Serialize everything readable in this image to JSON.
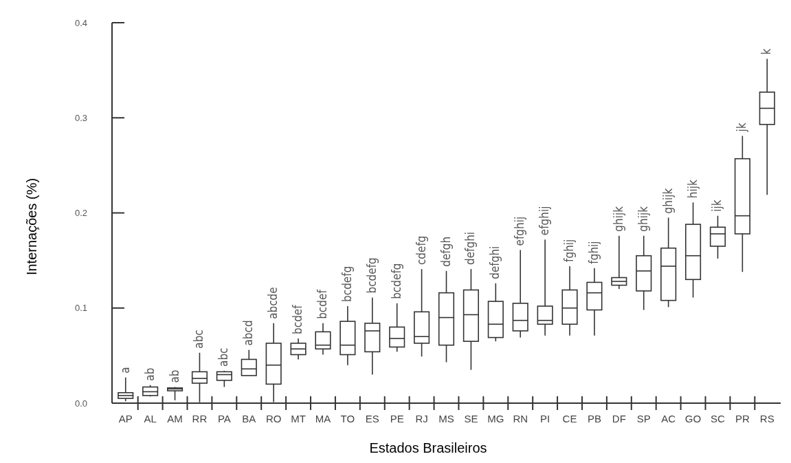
{
  "chart_data": {
    "type": "box",
    "xlabel": "Estados Brasileiros",
    "ylabel": "Internações (%)",
    "categories": [
      "AP",
      "AL",
      "AM",
      "RR",
      "PA",
      "BA",
      "RO",
      "MT",
      "MA",
      "TO",
      "ES",
      "PE",
      "RJ",
      "MS",
      "SE",
      "MG",
      "RN",
      "PI",
      "CE",
      "PB",
      "DF",
      "SP",
      "AC",
      "GO",
      "SC",
      "PR",
      "RS"
    ],
    "ylim": [
      0,
      0.4
    ],
    "yticks": [
      {
        "value": 0,
        "label": "0.0"
      },
      0.1,
      0.2,
      0.3,
      0.4
    ],
    "grid": false,
    "boxes": [
      {
        "low": 0.002,
        "q1": 0.005,
        "median": 0.008,
        "q3": 0.011,
        "high": 0.027
      },
      {
        "low": 0.007,
        "q1": 0.008,
        "median": 0.012,
        "q3": 0.017,
        "high": 0.019
      },
      {
        "low": 0.003,
        "q1": 0.013,
        "median": 0.015,
        "q3": 0.016,
        "high": 0.017
      },
      {
        "low": 0.001,
        "q1": 0.021,
        "median": 0.026,
        "q3": 0.033,
        "high": 0.053
      },
      {
        "low": 0.017,
        "q1": 0.024,
        "median": 0.03,
        "q3": 0.033,
        "high": 0.034
      },
      {
        "low": 0.029,
        "q1": 0.029,
        "median": 0.036,
        "q3": 0.046,
        "high": 0.056
      },
      {
        "low": 0.001,
        "q1": 0.02,
        "median": 0.04,
        "q3": 0.063,
        "high": 0.084
      },
      {
        "low": 0.046,
        "q1": 0.051,
        "median": 0.057,
        "q3": 0.063,
        "high": 0.068
      },
      {
        "low": 0.051,
        "q1": 0.057,
        "median": 0.061,
        "q3": 0.075,
        "high": 0.084
      },
      {
        "low": 0.04,
        "q1": 0.051,
        "median": 0.061,
        "q3": 0.086,
        "high": 0.102
      },
      {
        "low": 0.03,
        "q1": 0.054,
        "median": 0.076,
        "q3": 0.084,
        "high": 0.111
      },
      {
        "low": 0.054,
        "q1": 0.059,
        "median": 0.068,
        "q3": 0.08,
        "high": 0.105
      },
      {
        "low": 0.049,
        "q1": 0.063,
        "median": 0.07,
        "q3": 0.096,
        "high": 0.141
      },
      {
        "low": 0.043,
        "q1": 0.061,
        "median": 0.09,
        "q3": 0.116,
        "high": 0.139
      },
      {
        "low": 0.035,
        "q1": 0.065,
        "median": 0.093,
        "q3": 0.119,
        "high": 0.141
      },
      {
        "low": 0.065,
        "q1": 0.069,
        "median": 0.083,
        "q3": 0.107,
        "high": 0.126
      },
      {
        "low": 0.069,
        "q1": 0.076,
        "median": 0.087,
        "q3": 0.105,
        "high": 0.161
      },
      {
        "low": 0.071,
        "q1": 0.083,
        "median": 0.087,
        "q3": 0.102,
        "high": 0.172
      },
      {
        "low": 0.071,
        "q1": 0.083,
        "median": 0.1,
        "q3": 0.119,
        "high": 0.144
      },
      {
        "low": 0.071,
        "q1": 0.098,
        "median": 0.116,
        "q3": 0.127,
        "high": 0.142
      },
      {
        "low": 0.12,
        "q1": 0.124,
        "median": 0.128,
        "q3": 0.132,
        "high": 0.176
      },
      {
        "low": 0.098,
        "q1": 0.118,
        "median": 0.139,
        "q3": 0.155,
        "high": 0.176
      },
      {
        "low": 0.101,
        "q1": 0.108,
        "median": 0.144,
        "q3": 0.163,
        "high": 0.195
      },
      {
        "low": 0.111,
        "q1": 0.13,
        "median": 0.155,
        "q3": 0.188,
        "high": 0.211
      },
      {
        "low": 0.152,
        "q1": 0.165,
        "median": 0.178,
        "q3": 0.185,
        "high": 0.197
      },
      {
        "low": 0.138,
        "q1": 0.178,
        "median": 0.197,
        "q3": 0.257,
        "high": 0.281
      },
      {
        "low": 0.219,
        "q1": 0.293,
        "median": 0.31,
        "q3": 0.327,
        "high": 0.362
      }
    ],
    "annotations": [
      {
        "text": "a",
        "x": "AP",
        "y": 0.027
      },
      {
        "text": "ab",
        "x": "AL",
        "y": 0.019
      },
      {
        "text": "ab",
        "x": "AM",
        "y": 0.017
      },
      {
        "text": "abc",
        "x": "RR",
        "y": 0.053
      },
      {
        "text": "abc",
        "x": "PA",
        "y": 0.034
      },
      {
        "text": "abcd",
        "x": "BA",
        "y": 0.056
      },
      {
        "text": "abcde",
        "x": "RO",
        "y": 0.084
      },
      {
        "text": "bcdef",
        "x": "MT",
        "y": 0.068
      },
      {
        "text": "bcdef",
        "x": "MA",
        "y": 0.084
      },
      {
        "text": "bcdefg",
        "x": "TO",
        "y": 0.102
      },
      {
        "text": "bcdefg",
        "x": "ES",
        "y": 0.111
      },
      {
        "text": "bcdefg",
        "x": "PE",
        "y": 0.105
      },
      {
        "text": "cdefg",
        "x": "RJ",
        "y": 0.141
      },
      {
        "text": "defgh",
        "x": "MS",
        "y": 0.139
      },
      {
        "text": "defghi",
        "x": "SE",
        "y": 0.141
      },
      {
        "text": "defghi",
        "x": "MG",
        "y": 0.126
      },
      {
        "text": "efghij",
        "x": "RN",
        "y": 0.161
      },
      {
        "text": "efghij",
        "x": "PI",
        "y": 0.172
      },
      {
        "text": "fghij",
        "x": "CE",
        "y": 0.144
      },
      {
        "text": "fghij",
        "x": "PB",
        "y": 0.142
      },
      {
        "text": "ghijk",
        "x": "DF",
        "y": 0.176
      },
      {
        "text": "ghijk",
        "x": "SP",
        "y": 0.176
      },
      {
        "text": "ghijk",
        "x": "AC",
        "y": 0.195
      },
      {
        "text": "hijk",
        "x": "GO",
        "y": 0.211
      },
      {
        "text": "ijk",
        "x": "SC",
        "y": 0.197
      },
      {
        "text": "jk",
        "x": "PR",
        "y": 0.281
      },
      {
        "text": "k",
        "x": "RS",
        "y": 0.362
      }
    ]
  }
}
